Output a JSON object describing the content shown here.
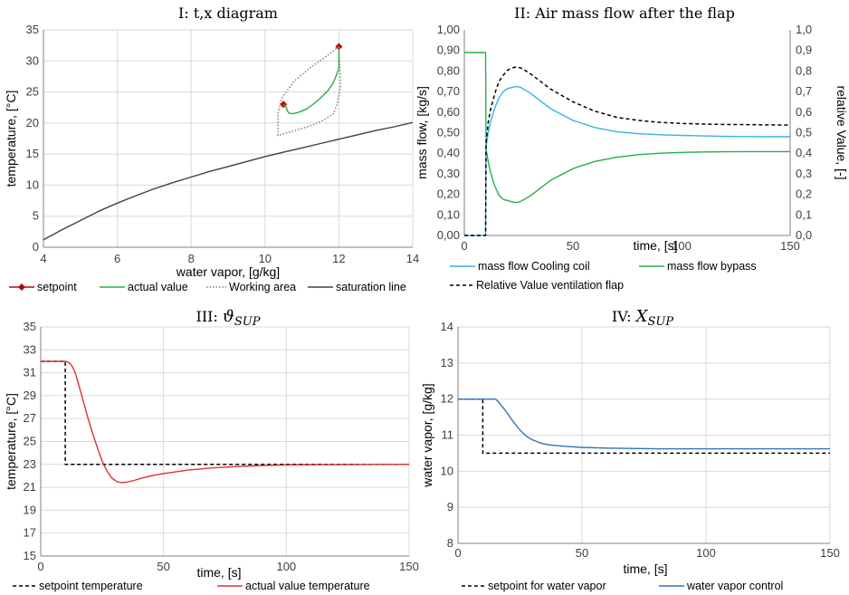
{
  "chart_data": [
    {
      "type": "line",
      "title": "I: t,x diagram",
      "xlabel": "water vapor, [g/kg]",
      "ylabel": "temperature, [°C]",
      "xlim": [
        4,
        14
      ],
      "ylim": [
        0,
        35
      ],
      "xticks": [
        4,
        6,
        8,
        10,
        12,
        14
      ],
      "yticks": [
        0,
        5,
        10,
        15,
        20,
        25,
        30,
        35
      ],
      "xtick_labels": [
        "4",
        "6",
        "8",
        "10",
        "12",
        "14"
      ],
      "ytick_labels": [
        "0",
        "5",
        "10",
        "15",
        "20",
        "25",
        "30",
        "35"
      ],
      "grid": true,
      "legend_position": "bottom",
      "series": [
        {
          "name": "setpoint",
          "color": "#c00000",
          "style": "marker",
          "x": [
            12.0,
            10.5
          ],
          "y": [
            32.3,
            23.0
          ]
        },
        {
          "name": "actual value",
          "color": "#22b14c",
          "style": "solid",
          "x": [
            12.0,
            12.0,
            11.95,
            11.85,
            11.7,
            11.5,
            11.3,
            11.1,
            10.9,
            10.75,
            10.65,
            10.6,
            10.58,
            10.55,
            10.5
          ],
          "y": [
            32.3,
            28.8,
            28.0,
            26.5,
            25.2,
            24.0,
            23.0,
            22.2,
            21.7,
            21.5,
            21.6,
            22.0,
            22.5,
            22.8,
            23.0
          ]
        },
        {
          "name": "Working area",
          "color": "#808080",
          "style": "dotted",
          "x": [
            12.0,
            11.6,
            11.2,
            10.8,
            10.45,
            10.35,
            10.35,
            10.7,
            11.2,
            11.6,
            11.85,
            11.95,
            12.05,
            12.0
          ],
          "y": [
            32.3,
            30.5,
            28.8,
            26.8,
            24.0,
            21.5,
            18.0,
            18.6,
            19.5,
            20.5,
            21.5,
            23.0,
            26.0,
            32.3
          ]
        },
        {
          "name": "saturation line",
          "color": "#404040",
          "style": "solid",
          "x": [
            4,
            4.5,
            5,
            5.5,
            6,
            6.5,
            7,
            7.5,
            8,
            8.5,
            9,
            9.5,
            10,
            10.5,
            11,
            11.5,
            12,
            12.5,
            13,
            13.5,
            14
          ],
          "y": [
            1.2,
            2.8,
            4.3,
            5.8,
            7.1,
            8.3,
            9.4,
            10.4,
            11.3,
            12.2,
            13.0,
            13.8,
            14.6,
            15.3,
            16.0,
            16.7,
            17.4,
            18.1,
            18.8,
            19.4,
            20.1
          ]
        }
      ]
    },
    {
      "type": "line",
      "title": "II: Air mass flow after the flap",
      "xlabel": "time, [s]",
      "ylabel": "mass flow, [kg/s]",
      "y2label": "relative Value, [-]",
      "xlim": [
        0,
        150
      ],
      "ylim": [
        0,
        1.0
      ],
      "y2lim": [
        0,
        1.0
      ],
      "xticks": [
        0,
        50,
        100,
        150
      ],
      "yticks": [
        0,
        0.1,
        0.2,
        0.3,
        0.4,
        0.5,
        0.6,
        0.7,
        0.8,
        0.9,
        1.0
      ],
      "xtick_labels": [
        "0",
        "50",
        "100",
        "150"
      ],
      "ytick_labels": [
        "0,00",
        "0,10",
        "0,20",
        "0,30",
        "0,40",
        "0,50",
        "0,60",
        "0,70",
        "0,80",
        "0,90",
        "1,00"
      ],
      "y2tick_labels": [
        "0,0",
        "0,1",
        "0,2",
        "0,3",
        "0,4",
        "0,5",
        "0,6",
        "0,7",
        "0,8",
        "0,9",
        "1,0"
      ],
      "grid": false,
      "legend_position": "bottom",
      "series": [
        {
          "name": "mass flow Cooling coil",
          "color": "#35b4e6",
          "style": "solid",
          "axis": "y",
          "x": [
            0,
            9.8,
            10,
            11,
            12,
            14,
            16,
            18,
            20,
            22,
            24,
            26,
            30,
            35,
            40,
            50,
            60,
            70,
            80,
            90,
            100,
            110,
            120,
            130,
            140,
            150
          ],
          "y": [
            0,
            0,
            0.43,
            0.5,
            0.55,
            0.62,
            0.67,
            0.7,
            0.715,
            0.72,
            0.725,
            0.72,
            0.695,
            0.655,
            0.615,
            0.56,
            0.525,
            0.505,
            0.495,
            0.49,
            0.487,
            0.484,
            0.482,
            0.481,
            0.48,
            0.48
          ]
        },
        {
          "name": "mass flow bypass",
          "color": "#22b14c",
          "style": "solid",
          "axis": "y",
          "x": [
            0,
            9.8,
            10,
            11,
            12,
            14,
            16,
            18,
            20,
            22,
            24,
            26,
            30,
            35,
            40,
            50,
            60,
            70,
            80,
            90,
            100,
            110,
            120,
            130,
            140,
            150
          ],
          "y": [
            0.89,
            0.89,
            0.42,
            0.36,
            0.31,
            0.24,
            0.195,
            0.175,
            0.17,
            0.163,
            0.16,
            0.166,
            0.19,
            0.23,
            0.27,
            0.325,
            0.36,
            0.38,
            0.393,
            0.4,
            0.404,
            0.406,
            0.407,
            0.408,
            0.408,
            0.408
          ]
        },
        {
          "name": "Relative Value ventilation flap",
          "color": "#000000",
          "style": "dashed",
          "axis": "y2",
          "x": [
            0,
            9.8,
            10,
            11,
            12,
            14,
            16,
            18,
            20,
            22,
            24,
            26,
            30,
            35,
            40,
            50,
            60,
            70,
            80,
            90,
            100,
            110,
            120,
            130,
            140,
            150
          ],
          "y": [
            0,
            0,
            0.45,
            0.55,
            0.61,
            0.69,
            0.75,
            0.78,
            0.805,
            0.815,
            0.82,
            0.815,
            0.79,
            0.75,
            0.71,
            0.65,
            0.605,
            0.575,
            0.56,
            0.55,
            0.545,
            0.542,
            0.54,
            0.539,
            0.538,
            0.537
          ]
        }
      ]
    },
    {
      "type": "line",
      "title": "III: ϑSUP",
      "title_main": "III: ",
      "title_symbol": "ϑ",
      "title_sub": "SUP",
      "xlabel": "time, [s]",
      "ylabel": "temperature, [°C]",
      "xlim": [
        0,
        150
      ],
      "ylim": [
        15,
        35
      ],
      "xticks": [
        0,
        50,
        100,
        150
      ],
      "yticks": [
        15,
        17,
        19,
        21,
        23,
        25,
        27,
        29,
        31,
        33,
        35
      ],
      "xtick_labels": [
        "0",
        "50",
        "100",
        "150"
      ],
      "ytick_labels": [
        "15",
        "17",
        "19",
        "21",
        "23",
        "25",
        "27",
        "29",
        "31",
        "33",
        "35"
      ],
      "grid": true,
      "legend_position": "bottom",
      "series": [
        {
          "name": "setpoint temperature",
          "color": "#000000",
          "style": "dashed",
          "x": [
            0,
            10,
            10,
            150
          ],
          "y": [
            32,
            32,
            23,
            23
          ]
        },
        {
          "name": "actual value temperature",
          "color": "#e03030",
          "style": "solid",
          "x": [
            0,
            10,
            11,
            12,
            13,
            14,
            15,
            17,
            19,
            21,
            23,
            25,
            27,
            29,
            31,
            33,
            35,
            38,
            42,
            46,
            50,
            60,
            70,
            80,
            90,
            100,
            110,
            120,
            130,
            140,
            150
          ],
          "y": [
            32,
            32,
            31.95,
            31.8,
            31.5,
            31,
            30.3,
            28.8,
            27.2,
            25.8,
            24.5,
            23.3,
            22.4,
            21.8,
            21.5,
            21.4,
            21.45,
            21.6,
            21.85,
            22.05,
            22.2,
            22.5,
            22.7,
            22.82,
            22.9,
            22.95,
            22.97,
            22.98,
            22.99,
            23.0,
            23.0
          ]
        }
      ]
    },
    {
      "type": "line",
      "title": "IV: XSUP",
      "title_main": "IV: ",
      "title_symbol": "X",
      "title_sub": "SUP",
      "xlabel": "time, [s]",
      "ylabel": "water vapor, [g/kg]",
      "xlim": [
        0,
        150
      ],
      "ylim": [
        8,
        14
      ],
      "xticks": [
        0,
        50,
        100,
        150
      ],
      "yticks": [
        8,
        9,
        10,
        11,
        12,
        13,
        14
      ],
      "xtick_labels": [
        "0",
        "50",
        "100",
        "150"
      ],
      "ytick_labels": [
        "8",
        "9",
        "10",
        "11",
        "12",
        "13",
        "14"
      ],
      "grid": true,
      "legend_position": "bottom",
      "series": [
        {
          "name": "setpoint for water vapor",
          "color": "#000000",
          "style": "dashed",
          "x": [
            0,
            10,
            10,
            150
          ],
          "y": [
            12,
            12,
            10.5,
            10.5
          ]
        },
        {
          "name": "water vapor control",
          "color": "#2e75b6",
          "style": "solid",
          "x": [
            0,
            15,
            16,
            18,
            20,
            22,
            24,
            26,
            28,
            30,
            33,
            36,
            40,
            45,
            50,
            60,
            70,
            80,
            90,
            100,
            110,
            120,
            130,
            140,
            150
          ],
          "y": [
            12,
            12,
            11.95,
            11.78,
            11.6,
            11.4,
            11.22,
            11.07,
            10.95,
            10.87,
            10.79,
            10.74,
            10.71,
            10.68,
            10.66,
            10.64,
            10.63,
            10.62,
            10.62,
            10.62,
            10.62,
            10.62,
            10.62,
            10.62,
            10.62
          ]
        }
      ]
    }
  ]
}
